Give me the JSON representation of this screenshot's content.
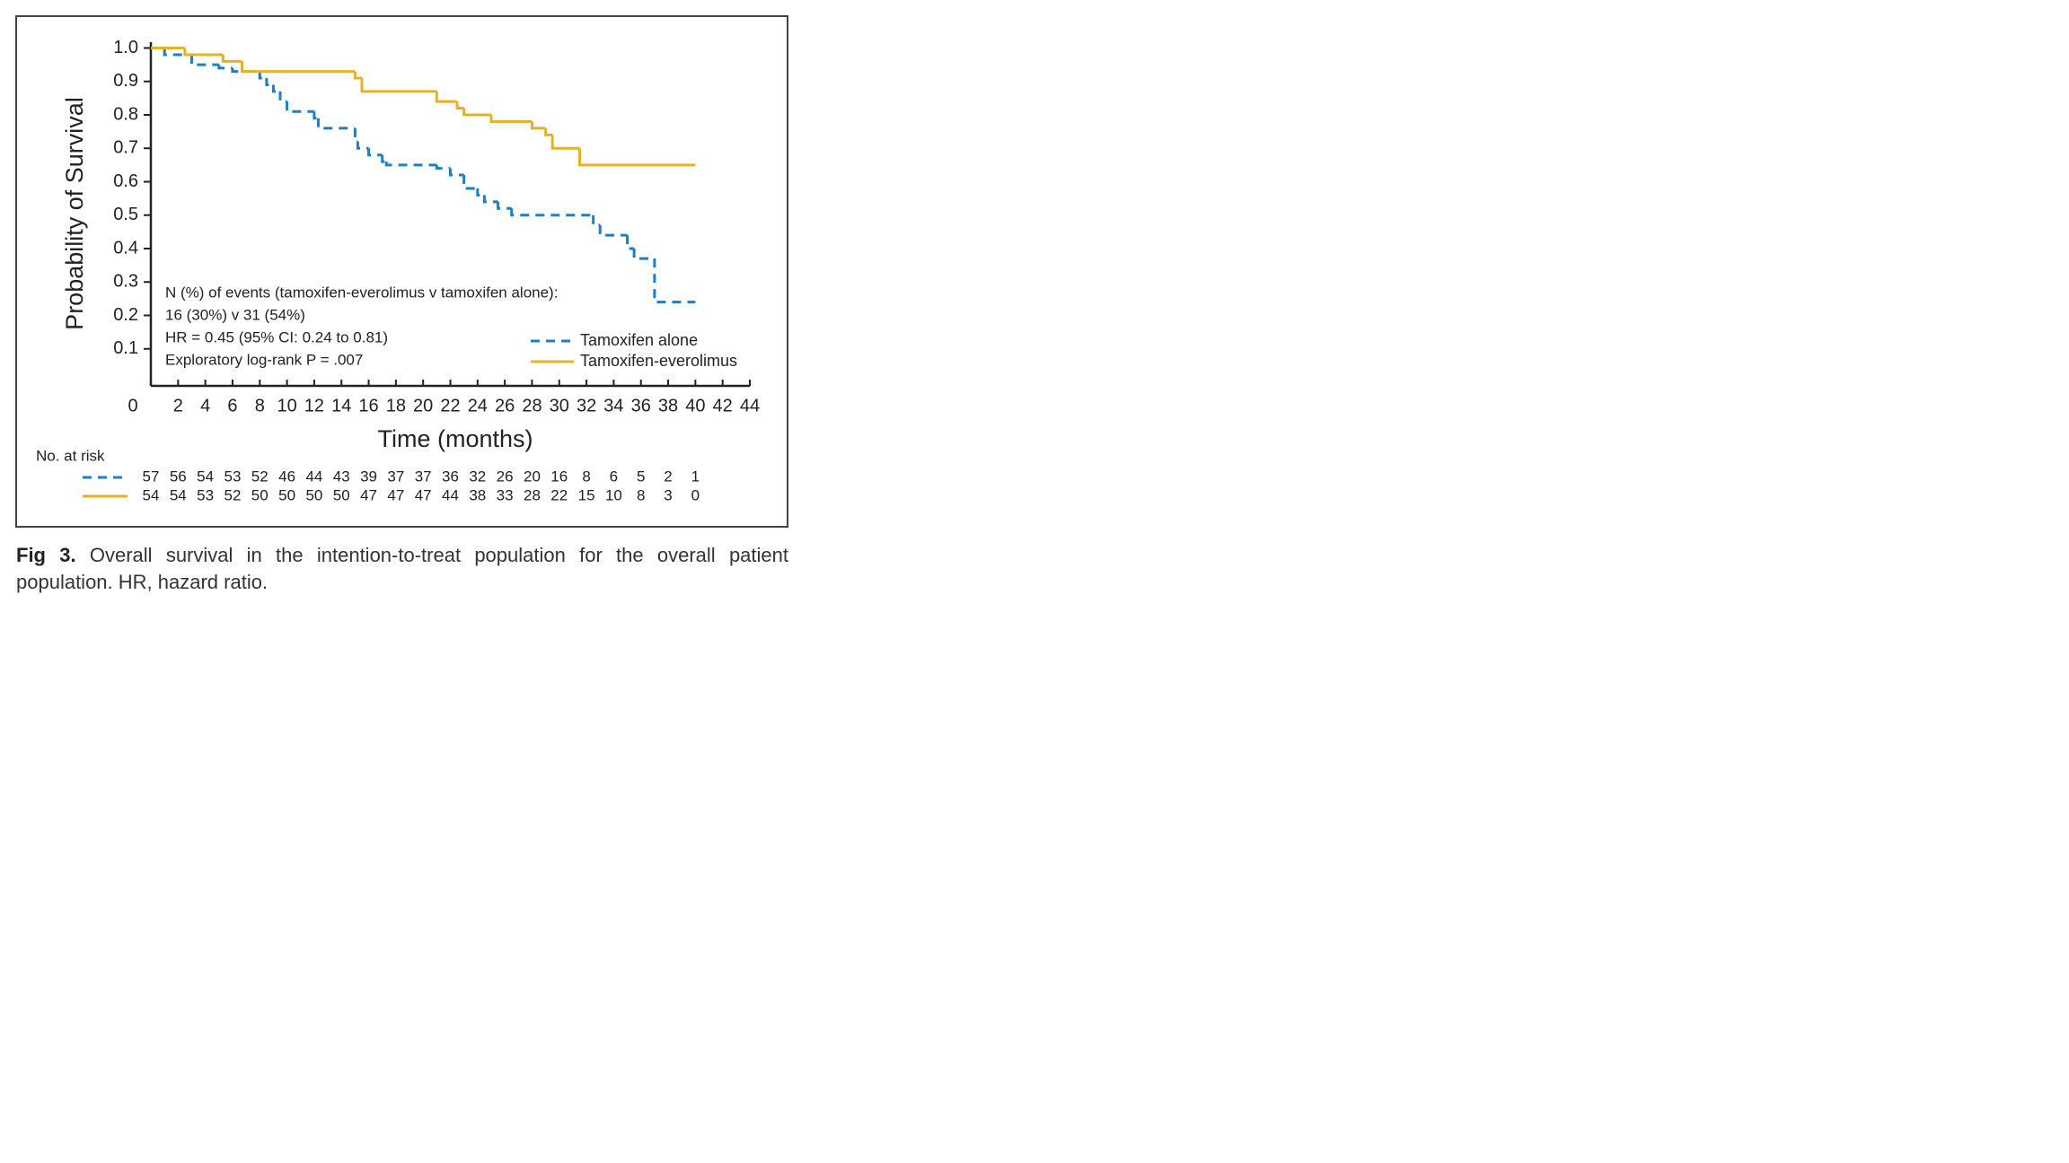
{
  "chart_data": {
    "type": "step",
    "y_label": "Probability of Survival",
    "x_label": "Time (months)",
    "xlim": [
      0,
      44
    ],
    "ylim": [
      0,
      1
    ],
    "xticks": [
      0,
      2,
      4,
      6,
      8,
      10,
      12,
      14,
      16,
      18,
      20,
      22,
      24,
      26,
      28,
      30,
      32,
      34,
      36,
      38,
      40,
      42,
      44
    ],
    "yticks": [
      0.1,
      0.2,
      0.3,
      0.4,
      0.5,
      0.6,
      0.7,
      0.8,
      0.9,
      {
        "value": 1,
        "label": "1.0"
      }
    ],
    "annotations": [
      "N (%) of events (tamoxifen-everolimus v tamoxifen alone):",
      "16 (30%) v 31 (54%)",
      "HR = 0.45 (95% CI: 0.24 to 0.81)",
      "Exploratory log-rank P = .007"
    ],
    "risk_label": "No. at risk",
    "series": [
      {
        "name": "Tamoxifen alone",
        "color": "#1f7fc1",
        "dashed": true,
        "x": [
          0,
          1,
          3,
          5,
          6,
          8,
          8.5,
          9,
          9.5,
          10,
          12,
          12.3,
          15,
          15.2,
          16,
          17,
          17.3,
          21,
          22,
          23,
          24,
          24.5,
          25.5,
          26.5,
          32.5,
          33,
          35,
          35.5,
          37,
          40
        ],
        "values": [
          1,
          0.98,
          0.95,
          0.94,
          0.93,
          0.91,
          0.89,
          0.87,
          0.84,
          0.81,
          0.79,
          0.76,
          0.72,
          0.7,
          0.68,
          0.66,
          0.65,
          0.64,
          0.62,
          0.58,
          0.56,
          0.54,
          0.52,
          0.5,
          0.47,
          0.44,
          0.4,
          0.37,
          0.24,
          0.24
        ],
        "at_risk": [
          57,
          56,
          54,
          53,
          52,
          46,
          44,
          43,
          39,
          37,
          37,
          36,
          32,
          26,
          20,
          16,
          8,
          6,
          5,
          2,
          1
        ]
      },
      {
        "name": "Tamoxifen-everolimus",
        "color": "#e6b225",
        "dashed": false,
        "x": [
          0,
          2.5,
          5.3,
          6.7,
          15,
          15.5,
          21,
          22.5,
          23,
          25,
          28,
          29,
          29.5,
          31.5,
          40
        ],
        "values": [
          1,
          0.98,
          0.96,
          0.93,
          0.91,
          0.87,
          0.84,
          0.82,
          0.8,
          0.78,
          0.76,
          0.74,
          0.7,
          0.65,
          0.65
        ],
        "at_risk": [
          54,
          54,
          53,
          52,
          50,
          50,
          50,
          50,
          47,
          47,
          47,
          44,
          38,
          33,
          28,
          22,
          15,
          10,
          8,
          3,
          0
        ]
      }
    ]
  },
  "caption": {
    "label": "Fig 3.",
    "text": "Overall survival in the intention-to-treat population for the overall patient population. HR, hazard ratio."
  }
}
